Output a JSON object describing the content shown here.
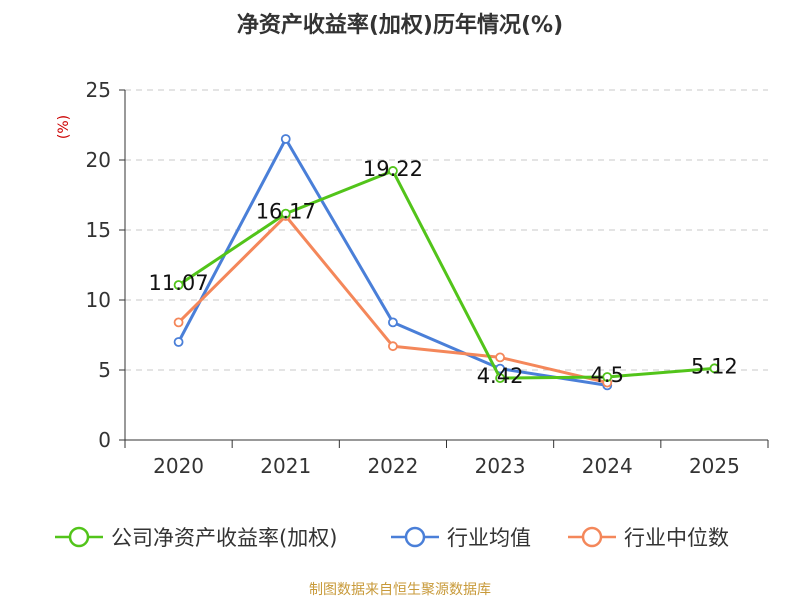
{
  "chart_data": {
    "type": "line",
    "title": "净资产收益率(加权)历年情况(%)",
    "ylabel": "(%)",
    "xlabel": "",
    "categories": [
      "2020",
      "2021",
      "2022",
      "2023",
      "2024",
      "2025"
    ],
    "ylim": [
      0,
      25
    ],
    "yticks": [
      0,
      5,
      10,
      15,
      20,
      25
    ],
    "grid": true,
    "legend_position": "bottom",
    "series": [
      {
        "name": "公司净资产收益率(加权)",
        "color": "#52c41a",
        "values": [
          11.07,
          16.17,
          19.22,
          4.42,
          4.5,
          5.12
        ],
        "labels": [
          "11.07",
          "16.17",
          "19.22",
          "4.42",
          "4.5",
          "5.12"
        ]
      },
      {
        "name": "行业均值",
        "color": "#4a7fd8",
        "values": [
          7.0,
          21.5,
          8.4,
          5.1,
          3.9,
          null
        ]
      },
      {
        "name": "行业中位数",
        "color": "#f4875a",
        "values": [
          8.4,
          16.0,
          6.7,
          5.9,
          4.1,
          null
        ]
      }
    ],
    "source": "制图数据来自恒生聚源数据库"
  }
}
